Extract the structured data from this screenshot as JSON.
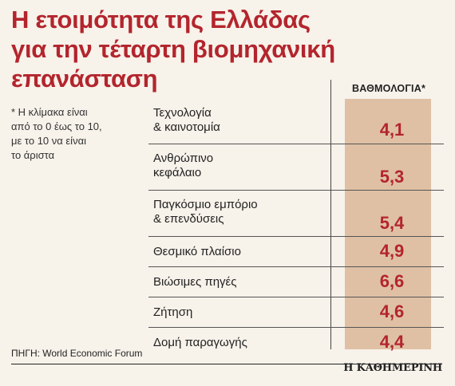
{
  "title_lines": [
    "Η ετοιμότητα της Ελλάδας",
    "για την τέταρτη βιομηχανική",
    "επανάσταση"
  ],
  "note_lines": [
    "* Η κλίμακα είναι",
    "από το 0 έως το 10,",
    "με το 10 να είναι",
    "το άριστα"
  ],
  "column_header": "ΒΑΘΜΟΛΟΓΙΑ*",
  "source": "ΠΗΓΗ: World Economic Forum",
  "brand": "Η ΚΑΘΗΜΕΡΙΝΗ",
  "colors": {
    "accent": "#b3252d",
    "band": "#dfc0a4",
    "background": "#f7f2ea"
  },
  "chart_data": {
    "type": "table",
    "title": "Η ετοιμότητα της Ελλάδας για την τέταρτη βιομηχανική επανάσταση",
    "value_header": "ΒΑΘΜΟΛΟΓΙΑ*",
    "scale": [
      0,
      10
    ],
    "rows": [
      {
        "label_lines": [
          "Τεχνολογία",
          "& καινοτομία"
        ],
        "value": "4,1"
      },
      {
        "label_lines": [
          "Ανθρώπινο",
          "κεφάλαιο"
        ],
        "value": "5,3"
      },
      {
        "label_lines": [
          "Παγκόσμιο εμπόριο",
          "& επενδύσεις"
        ],
        "value": "5,4"
      },
      {
        "label_lines": [
          "Θεσμικό πλαίσιο"
        ],
        "value": "4,9"
      },
      {
        "label_lines": [
          "Βιώσιμες πηγές"
        ],
        "value": "6,6"
      },
      {
        "label_lines": [
          "Ζήτηση"
        ],
        "value": "4,6"
      },
      {
        "label_lines": [
          "Δομή παραγωγής"
        ],
        "value": "4,4"
      }
    ]
  }
}
